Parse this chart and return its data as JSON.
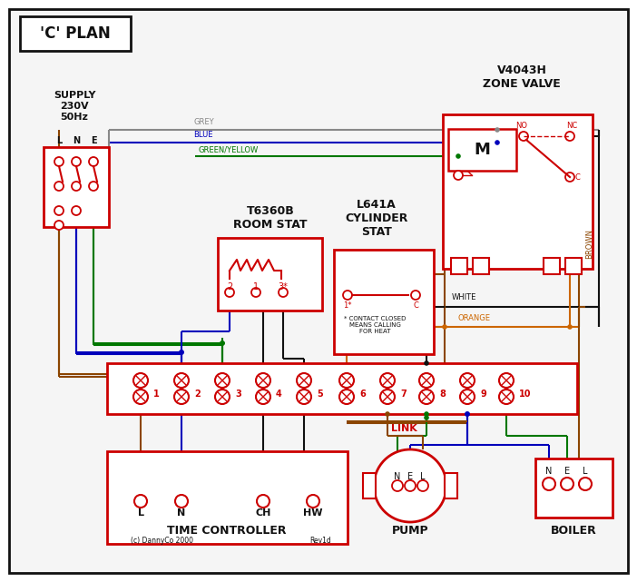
{
  "title": "'C' PLAN",
  "bg": "#ffffff",
  "RED": "#cc0000",
  "BLUE": "#0000bb",
  "GREEN": "#007700",
  "GREY": "#888888",
  "BROWN": "#8B4500",
  "ORANGE": "#cc6600",
  "BLACK": "#111111",
  "GY": "#007700",
  "supply_text": "SUPPLY\n230V\n50Hz",
  "zone_valve_text": "V4043H\nZONE VALVE",
  "room_stat_text": "T6360B\nROOM STAT",
  "cyl_stat_text": "L641A\nCYLINDER\nSTAT",
  "time_ctrl_text": "TIME CONTROLLER",
  "pump_text": "PUMP",
  "boiler_text": "BOILER",
  "motor_text": "M",
  "link_text": "LINK",
  "no_txt": "NO",
  "nc_txt": "NC",
  "c_txt": "C",
  "grey_lbl": "GREY",
  "blue_lbl": "BLUE",
  "gy_lbl": "GREEN/YELLOW",
  "brown_lbl": "BROWN",
  "white_lbl": "WHITE",
  "orange_lbl": "ORANGE",
  "contact_note": "* CONTACT CLOSED\nMEANS CALLING\nFOR HEAT",
  "copyright": "(c) DannyCo 2000",
  "rev": "Rev1d",
  "term_nums": [
    "1",
    "2",
    "3",
    "4",
    "5",
    "6",
    "7",
    "8",
    "9",
    "10"
  ]
}
